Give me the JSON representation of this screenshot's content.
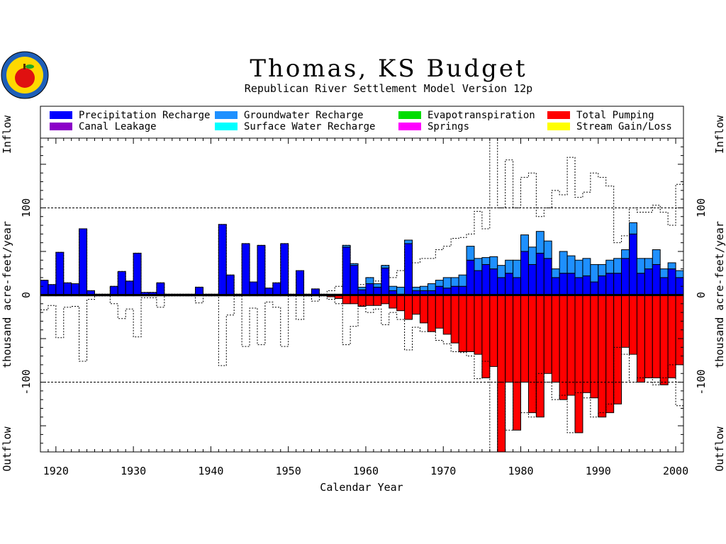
{
  "chart_data": {
    "type": "bar",
    "title": "Thomas, KS Budget",
    "subtitle": "Republican River Settlement Model Version 12p",
    "xlabel": "Calendar Year",
    "ylabel": "thousand acre-feet/year",
    "label_inflow": "Inflow",
    "label_outflow": "Outflow",
    "xlim": [
      1918,
      2001
    ],
    "ylim": [
      -180,
      180
    ],
    "x_ticks": [
      1920,
      1930,
      1940,
      1950,
      1960,
      1970,
      1980,
      1990,
      2000
    ],
    "y_ticks": [
      -100,
      0,
      100
    ],
    "reference_lines": [
      100,
      -100
    ],
    "legend_position": "top",
    "years": [
      1918,
      1919,
      1920,
      1921,
      1922,
      1923,
      1924,
      1925,
      1926,
      1927,
      1928,
      1929,
      1930,
      1931,
      1932,
      1933,
      1934,
      1935,
      1936,
      1937,
      1938,
      1939,
      1940,
      1941,
      1942,
      1943,
      1944,
      1945,
      1946,
      1947,
      1948,
      1949,
      1950,
      1951,
      1952,
      1953,
      1954,
      1955,
      1956,
      1957,
      1958,
      1959,
      1960,
      1961,
      1962,
      1963,
      1964,
      1965,
      1966,
      1967,
      1968,
      1969,
      1970,
      1971,
      1972,
      1973,
      1974,
      1975,
      1976,
      1977,
      1978,
      1979,
      1980,
      1981,
      1982,
      1983,
      1984,
      1985,
      1986,
      1987,
      1988,
      1989,
      1990,
      1991,
      1992,
      1993,
      1994,
      1995,
      1996,
      1997,
      1998,
      1999,
      2000
    ],
    "series": [
      {
        "name": "Precipitation Recharge",
        "color": "#0000ff",
        "values": [
          17,
          12,
          49,
          14,
          13,
          76,
          5,
          1,
          1,
          10,
          27,
          16,
          48,
          3,
          3,
          14,
          1,
          1,
          1,
          1,
          9,
          1,
          1,
          81,
          23,
          1,
          59,
          15,
          57,
          8,
          14,
          59,
          1,
          28,
          1,
          7,
          1,
          1,
          1,
          55,
          34,
          6,
          13,
          9,
          31,
          5,
          1,
          59,
          5,
          5,
          5,
          10,
          8,
          10,
          10,
          40,
          28,
          35,
          30,
          20,
          25,
          20,
          50,
          35,
          48,
          42,
          20,
          25,
          25,
          20,
          22,
          15,
          22,
          25,
          25,
          42,
          70,
          25,
          30,
          35,
          20,
          30,
          20
        ]
      },
      {
        "name": "Groundwater Recharge",
        "color": "#1e90ff",
        "values": [
          0,
          0,
          0,
          0,
          0,
          0,
          0,
          0,
          0,
          0,
          0,
          0,
          0,
          0,
          0,
          0,
          0,
          0,
          0,
          0,
          0,
          0,
          0,
          0,
          0,
          0,
          0,
          0,
          0,
          0,
          0,
          0,
          0,
          0,
          0,
          0,
          0,
          0,
          0,
          2,
          2,
          3,
          7,
          4,
          3,
          5,
          8,
          4,
          4,
          5,
          8,
          7,
          12,
          10,
          13,
          16,
          14,
          8,
          14,
          14,
          15,
          20,
          19,
          20,
          25,
          20,
          10,
          25,
          20,
          20,
          20,
          20,
          13,
          15,
          17,
          10,
          13,
          17,
          12,
          17,
          10,
          7,
          8
        ]
      },
      {
        "name": "Evapotranspiration",
        "color": "#00dd00",
        "values": []
      },
      {
        "name": "Total Pumping",
        "color": "#ff0000",
        "values": [
          -1,
          -1,
          -1,
          -1,
          -1,
          -1,
          -1,
          -1,
          -1,
          -1,
          -1,
          -1,
          -1,
          -1,
          -1,
          -1,
          -1,
          -1,
          -1,
          -1,
          -1,
          -1,
          -1,
          -1,
          -1,
          -1,
          -1,
          -1,
          -1,
          -1,
          -1,
          -1,
          -1,
          -1,
          -1,
          -1,
          -1,
          -2,
          -4,
          -10,
          -10,
          -13,
          -12,
          -12,
          -10,
          -15,
          -18,
          -28,
          -22,
          -32,
          -42,
          -38,
          -45,
          -55,
          -65,
          -65,
          -68,
          -95,
          -82,
          -180,
          -100,
          -155,
          -100,
          -135,
          -140,
          -90,
          -100,
          -120,
          -115,
          -158,
          -112,
          -118,
          -140,
          -135,
          -125,
          -60,
          -68,
          -100,
          -95,
          -95,
          -103,
          -95,
          -80
        ]
      },
      {
        "name": "Canal Leakage",
        "color": "#8b00c8",
        "values": []
      },
      {
        "name": "Surface Water Recharge",
        "color": "#00ffff",
        "values": []
      },
      {
        "name": "Springs",
        "color": "#ff00ff",
        "values": []
      },
      {
        "name": "Stream Gain/Loss",
        "color": "#ffff00",
        "values": []
      },
      {
        "name": "Net Budget Inflow (dotted)",
        "style": "dotted-step",
        "values": [
          17,
          12,
          49,
          14,
          13,
          76,
          5,
          1,
          1,
          10,
          27,
          16,
          48,
          3,
          3,
          14,
          1,
          1,
          1,
          1,
          9,
          1,
          1,
          81,
          23,
          1,
          59,
          15,
          57,
          8,
          14,
          59,
          1,
          28,
          1,
          7,
          1,
          5,
          10,
          57,
          36,
          12,
          20,
          16,
          34,
          20,
          28,
          63,
          37,
          42,
          42,
          52,
          56,
          65,
          66,
          70,
          96,
          76,
          180,
          100,
          155,
          100,
          135,
          140,
          90,
          100,
          120,
          115,
          158,
          112,
          118,
          140,
          135,
          125,
          60,
          68,
          100,
          95,
          95,
          103,
          95,
          80,
          127
        ]
      },
      {
        "name": "Net Budget Outflow (dotted)",
        "style": "dotted-step",
        "values": [
          -17,
          -12,
          -49,
          -14,
          -13,
          -76,
          -5,
          -1,
          -1,
          -10,
          -27,
          -16,
          -48,
          -3,
          -3,
          -14,
          -1,
          -1,
          -1,
          -1,
          -9,
          -1,
          -1,
          -81,
          -23,
          -1,
          -59,
          -15,
          -57,
          -8,
          -14,
          -59,
          -1,
          -28,
          -1,
          -7,
          -1,
          -5,
          -10,
          -57,
          -36,
          -12,
          -20,
          -16,
          -34,
          -20,
          -28,
          -63,
          -37,
          -42,
          -42,
          -52,
          -56,
          -65,
          -66,
          -70,
          -96,
          -76,
          -180,
          -100,
          -155,
          -100,
          -135,
          -140,
          -90,
          -100,
          -120,
          -115,
          -158,
          -112,
          -118,
          -140,
          -135,
          -125,
          -60,
          -68,
          -100,
          -95,
          -95,
          -103,
          -95,
          -80,
          -127
        ]
      }
    ]
  },
  "legend": [
    {
      "label": "Precipitation Recharge",
      "color": "#0000ff"
    },
    {
      "label": "Groundwater Recharge",
      "color": "#1e90ff"
    },
    {
      "label": "Evapotranspiration",
      "color": "#00dd00"
    },
    {
      "label": "Total Pumping",
      "color": "#ff0000"
    },
    {
      "label": "Canal Leakage",
      "color": "#8b00c8"
    },
    {
      "label": "Surface Water Recharge",
      "color": "#00ffff"
    },
    {
      "label": "Springs",
      "color": "#ff00ff"
    },
    {
      "label": "Stream Gain/Loss",
      "color": "#ffff00"
    }
  ],
  "logo": {
    "name": "kansas-seal-logo"
  }
}
